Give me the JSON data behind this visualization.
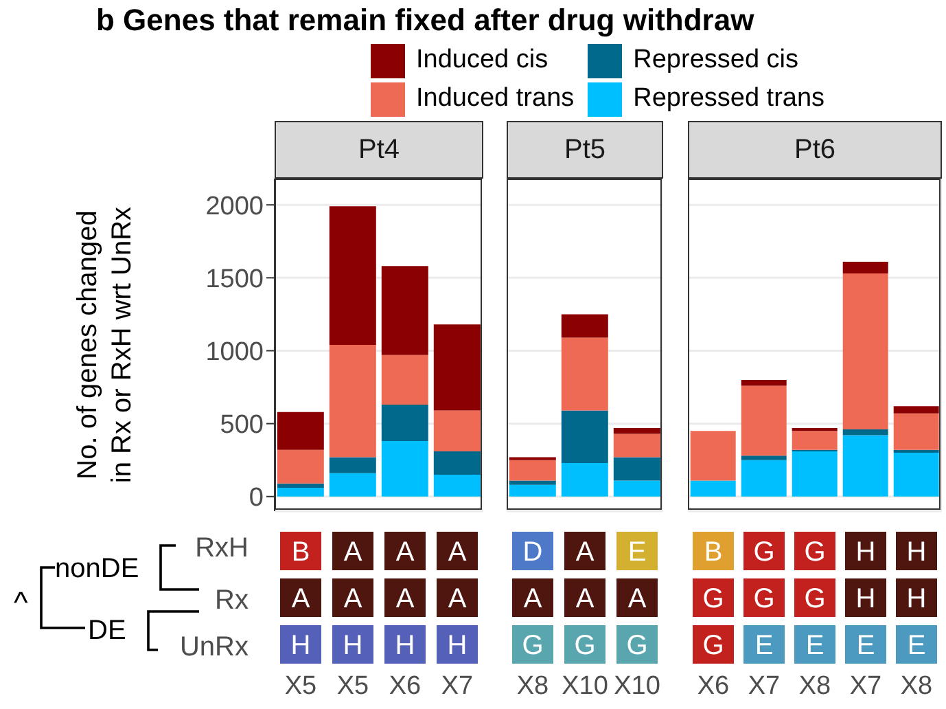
{
  "chart_data": [
    {
      "type": "bar",
      "title": "Pt4",
      "annotations": [
        "b Genes that remain fixed after drug withdraw"
      ],
      "ylabel": "No. of genes changed\nin Rx or RxH wrt UnRx",
      "categories": [
        null,
        null,
        null,
        null
      ],
      "stacked": true,
      "legend": "top",
      "grid": true,
      "tick_labels": "y",
      "ylim": [
        -100,
        2180
      ],
      "yticks": [
        0,
        500,
        1000,
        1500,
        2000
      ],
      "series": [
        {
          "name": "Repressed trans",
          "color": "#00bfff",
          "values": [
            60,
            160,
            380,
            150
          ]
        },
        {
          "name": "Repressed cis",
          "color": "#00698c",
          "values": [
            30,
            110,
            250,
            160
          ]
        },
        {
          "name": "Induced trans",
          "color": "#ee6a55",
          "values": [
            230,
            770,
            340,
            280
          ]
        },
        {
          "name": "Induced cis",
          "color": "#8b0000",
          "values": [
            260,
            950,
            610,
            590
          ]
        }
      ]
    },
    {
      "type": "bar",
      "title": "Pt5",
      "categories": [
        null,
        null,
        null
      ],
      "stacked": true,
      "grid": true,
      "tick_labels": false,
      "ylim": [
        -100,
        2180
      ],
      "yticks": [
        0,
        500,
        1000,
        1500,
        2000
      ],
      "series": [
        {
          "color": "#00bfff",
          "values": [
            80,
            230,
            110
          ]
        },
        {
          "color": "#00698c",
          "values": [
            30,
            360,
            160
          ]
        },
        {
          "color": "#ee6a55",
          "values": [
            140,
            500,
            160
          ]
        },
        {
          "color": "#8b0000",
          "values": [
            20,
            160,
            40
          ]
        }
      ]
    },
    {
      "type": "bar",
      "title": "Pt6",
      "categories": [
        null,
        null,
        null,
        null,
        null
      ],
      "stacked": true,
      "grid": true,
      "tick_labels": false,
      "ylim": [
        -100,
        2180
      ],
      "yticks": [
        0,
        500,
        1000,
        1500,
        2000
      ],
      "series": [
        {
          "color": "#00bfff",
          "values": [
            110,
            250,
            310,
            420,
            300
          ]
        },
        {
          "color": "#00698c",
          "values": [
            0,
            30,
            10,
            40,
            20
          ]
        },
        {
          "color": "#ee6a55",
          "values": [
            340,
            480,
            130,
            1070,
            250
          ]
        },
        {
          "color": "#8b0000",
          "values": [
            0,
            40,
            20,
            80,
            50
          ]
        }
      ]
    },
    {
      "type": "heatmap",
      "categories": [
        "X5",
        "X5",
        "X6",
        "X7",
        "X8",
        "X10",
        "X10",
        "X6",
        "X7",
        "X8",
        "X7",
        "X8"
      ],
      "y_categories": [
        "RxH",
        "Rx",
        "UnRx"
      ],
      "annotations": [
        "nonDE",
        "DE",
        "^"
      ],
      "cells": [
        [
          null,
          null,
          null,
          null,
          null,
          null,
          null,
          null,
          null,
          null,
          null,
          null
        ],
        [
          null,
          null,
          null,
          null,
          null,
          null,
          null,
          null,
          null,
          null,
          null,
          null
        ],
        [
          null,
          null,
          null,
          null,
          null,
          null,
          null,
          null,
          null,
          null,
          null,
          null
        ]
      ],
      "cell_labels": [
        [
          "B",
          "A",
          "A",
          "A",
          "D",
          "A",
          "E",
          "B",
          "G",
          "G",
          "H",
          "H"
        ],
        [
          "A",
          "A",
          "A",
          "A",
          "A",
          "A",
          "A",
          "G",
          "G",
          "G",
          "H",
          "H"
        ],
        [
          "H",
          "H",
          "H",
          "H",
          "G",
          "G",
          "G",
          "G",
          "E",
          "E",
          "E",
          "E"
        ]
      ],
      "colors": [
        [
          "#c3211e",
          "#4f1610",
          "#4f1610",
          "#4f1610",
          "#4e79c8",
          "#4f1610",
          "#d3b02f",
          "#e0a030",
          "#c3211e",
          "#c3211e",
          "#4f1610",
          "#4f1610"
        ],
        [
          "#4f1610",
          "#4f1610",
          "#4f1610",
          "#4f1610",
          "#4f1610",
          "#4f1610",
          "#4f1610",
          "#c3211e",
          "#c3211e",
          "#c3211e",
          "#4f1610",
          "#4f1610"
        ],
        [
          "#5560b8",
          "#5560b8",
          "#5560b8",
          "#5560b8",
          "#5aa6ae",
          "#5aa6ae",
          "#5aa6ae",
          "#c3211e",
          "#4d9ac0",
          "#4d9ac0",
          "#4d9ac0",
          "#4d9ac0"
        ]
      ]
    }
  ]
}
